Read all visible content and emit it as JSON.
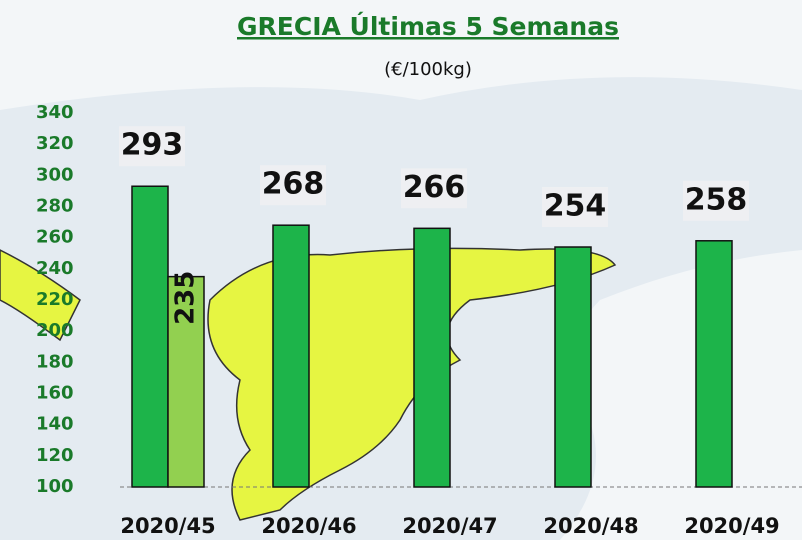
{
  "chart_data": {
    "type": "bar",
    "title": "GRECIA Últimas 5 Semanas",
    "subtitle": "(€/100kg)",
    "categories": [
      "2020/45",
      "2020/46",
      "2020/47",
      "2020/48",
      "2020/49"
    ],
    "series": [
      {
        "color": "#1db44a",
        "values": [
          293,
          268,
          266,
          254,
          258
        ]
      },
      {
        "color": "#92d050",
        "values": [
          235,
          null,
          null,
          null,
          null
        ]
      }
    ],
    "ylim": [
      100,
      340
    ],
    "yticks": [
      100,
      120,
      140,
      160,
      180,
      200,
      220,
      240,
      260,
      280,
      300,
      320,
      340
    ],
    "grid": false
  }
}
